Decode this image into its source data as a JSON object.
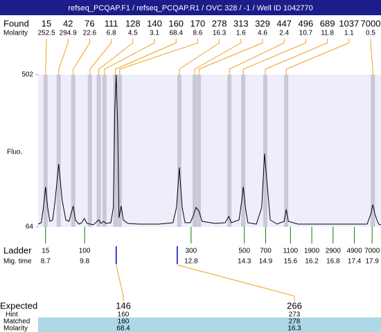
{
  "chart_data": {
    "type": "electropherogram",
    "title": "refseq_PCQAP.F1 / refseq_PCQAP.R1 / OVC 328 / -1 / Well ID 1042770",
    "found_label": "Found",
    "molarity_label": "Molarity",
    "y_label": "Fluo.",
    "ladder_label": "Ladder",
    "mig_time_label": "Mig. time",
    "expected_label": "Expected",
    "hint_label": "Hint",
    "matched_label": "Matched",
    "expected_molarity_label": "Molarity",
    "found": {
      "sizes": [
        15,
        42,
        76,
        111,
        128,
        140,
        160,
        170,
        278,
        313,
        329,
        447,
        496,
        689,
        1037,
        7000
      ],
      "molarity": [
        252.5,
        294.9,
        22.6,
        6.8,
        4.5,
        3.1,
        68.4,
        8.6,
        16.3,
        1.6,
        4.6,
        2.4,
        10.7,
        11.8,
        1.1,
        0.5
      ],
      "times": [
        8.7,
        9.07,
        9.48,
        9.95,
        10.2,
        10.36,
        10.67,
        10.79,
        12.47,
        12.9,
        13.02,
        13.88,
        14.27,
        14.89,
        15.48,
        17.92
      ]
    },
    "ladder": {
      "sizes": [
        15,
        100,
        300,
        500,
        700,
        1100,
        1900,
        2900,
        4900,
        7000
      ],
      "times": [
        8.7,
        9.8,
        12.8,
        14.3,
        14.9,
        15.6,
        16.2,
        16.8,
        17.4,
        17.9
      ]
    },
    "expected": {
      "sizes": [
        146,
        266
      ],
      "hint": [
        160,
        273
      ],
      "matched": [
        160,
        278
      ],
      "molarity": [
        68.4,
        16.3
      ],
      "times": [
        10.69,
        12.41
      ]
    },
    "trace": {
      "x": [
        8.49,
        8.58,
        8.64,
        8.7,
        8.76,
        8.82,
        8.9,
        8.97,
        9.07,
        9.17,
        9.27,
        9.36,
        9.44,
        9.48,
        9.54,
        9.64,
        9.72,
        9.79,
        9.87,
        10.05,
        10.15,
        10.2,
        10.26,
        10.34,
        10.4,
        10.54,
        10.61,
        10.65,
        10.69,
        10.73,
        10.77,
        10.83,
        10.89,
        11.02,
        11.32,
        11.9,
        12.29,
        12.39,
        12.47,
        12.55,
        12.63,
        12.78,
        12.86,
        12.94,
        13.02,
        13.11,
        13.47,
        13.76,
        13.86,
        13.93,
        14.15,
        14.23,
        14.27,
        14.33,
        14.4,
        14.64,
        14.79,
        14.87,
        14.95,
        15.03,
        15.22,
        15.42,
        15.48,
        15.54,
        15.81,
        17.76,
        17.86,
        17.92,
        17.98,
        18.08,
        18.15
      ],
      "y": [
        72,
        76,
        120,
        179,
        120,
        80,
        84,
        140,
        245,
        140,
        84,
        80,
        110,
        124,
        84,
        72,
        76,
        88,
        74,
        70,
        80,
        84,
        74,
        80,
        74,
        76,
        120,
        398,
        502,
        359,
        90,
        124,
        84,
        74,
        72,
        72,
        76,
        120,
        235,
        120,
        76,
        76,
        96,
        120,
        110,
        80,
        74,
        76,
        94,
        76,
        84,
        140,
        179,
        120,
        76,
        72,
        120,
        275,
        179,
        84,
        72,
        80,
        114,
        80,
        72,
        72,
        100,
        128,
        100,
        72,
        70
      ],
      "color": "#000000"
    },
    "xlim": [
      8.49,
      18.15
    ],
    "ylim": [
      64,
      502
    ],
    "yticks": [
      64,
      502
    ],
    "plot_background": "#eeeefa",
    "band_color": "#c8c8d8",
    "found_line_color": "#f0a020",
    "ladder_tick_color": "#008000",
    "expected_marker_color": "#0000c0",
    "highlight_color": "#add8e6",
    "title_background": "#1c1c8a"
  }
}
